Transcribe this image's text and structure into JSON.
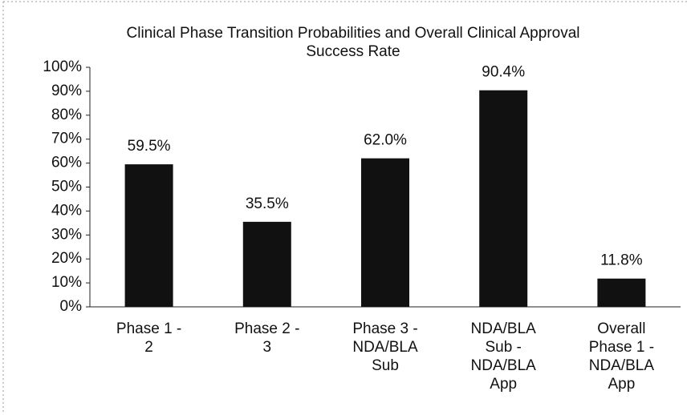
{
  "chart_data": {
    "type": "bar",
    "title": "Clinical Phase Transition Probabilities and Overall Clinical Approval Success Rate",
    "categories": [
      "Phase 1 - 2",
      "Phase 2 - 3",
      "Phase 3 - NDA/BLA Sub",
      "NDA/BLA Sub - NDA/BLA App",
      "Overall Phase 1 - NDA/BLA App"
    ],
    "values": [
      59.5,
      35.5,
      62.0,
      90.4,
      11.8
    ],
    "value_labels": [
      "59.5%",
      "35.5%",
      "62.0%",
      "90.4%",
      "11.8%"
    ],
    "color": "#111111",
    "ylim": [
      0,
      100
    ],
    "yticks": [
      {
        "value": 0,
        "label": "0%"
      },
      {
        "value": 10,
        "label": "10%"
      },
      {
        "value": 20,
        "label": "20%"
      },
      {
        "value": 30,
        "label": "30%"
      },
      {
        "value": 40,
        "label": "40%"
      },
      {
        "value": 50,
        "label": "50%"
      },
      {
        "value": 60,
        "label": "60%"
      },
      {
        "value": 70,
        "label": "70%"
      },
      {
        "value": 80,
        "label": "80%"
      },
      {
        "value": 90,
        "label": "90%"
      },
      {
        "value": 100,
        "label": "100%"
      }
    ],
    "grid": false
  }
}
